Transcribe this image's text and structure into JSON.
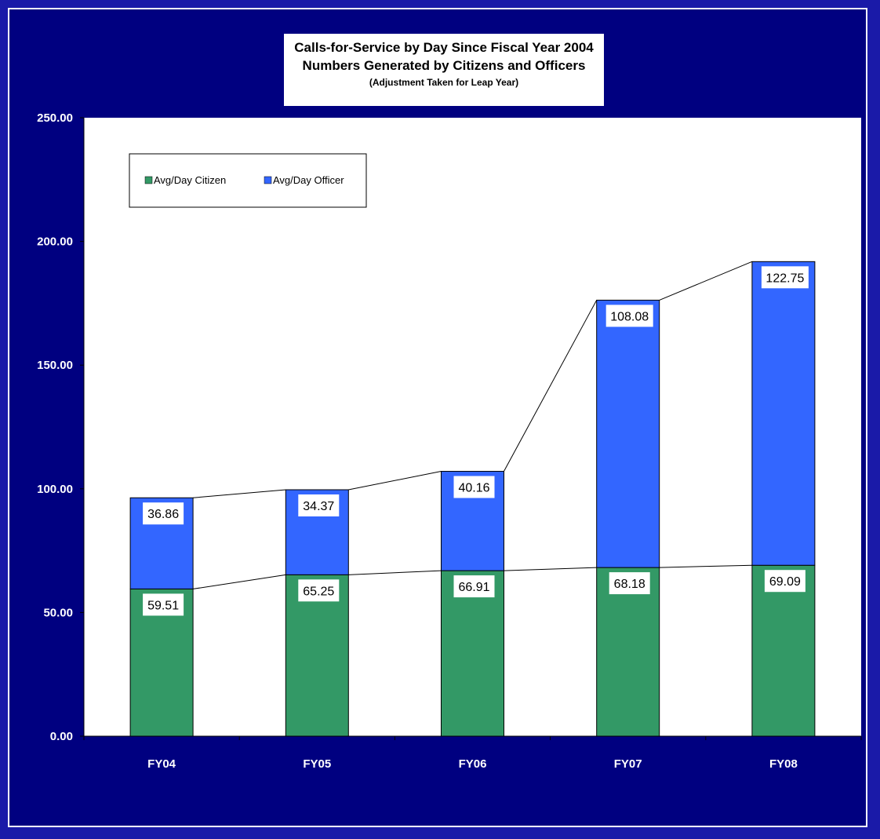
{
  "title": {
    "line1": "Calls-for-Service by Day Since Fiscal Year 2004",
    "line2": "Numbers Generated by Citizens and Officers",
    "line3": "(Adjustment Taken for Leap Year)"
  },
  "colors": {
    "frame_outer": "#1a1aa8",
    "frame_inner": "#000080",
    "citizen": "#339966",
    "officer": "#3366ff",
    "plot_bg": "#ffffff"
  },
  "chart_data": {
    "type": "bar",
    "stacked": true,
    "categories": [
      "FY04",
      "FY05",
      "FY06",
      "FY07",
      "FY08"
    ],
    "series": [
      {
        "name": "Avg/Day Citizen",
        "values": [
          59.51,
          65.25,
          66.91,
          68.18,
          69.09
        ],
        "color": "#339966"
      },
      {
        "name": "Avg/Day Officer",
        "values": [
          36.86,
          34.37,
          40.16,
          108.08,
          122.75
        ],
        "color": "#3366ff"
      }
    ],
    "data_labels": {
      "citizen": [
        "59.51",
        "65.25",
        "66.91",
        "68.18",
        "69.09"
      ],
      "officer": [
        "36.86",
        "34.37",
        "40.16",
        "108.08",
        "122.75"
      ]
    },
    "ylim": [
      0,
      250
    ],
    "yticks": [
      "0.00",
      "50.00",
      "100.00",
      "150.00",
      "200.00",
      "250.00"
    ],
    "ytick_values": [
      0,
      50,
      100,
      150,
      200,
      250
    ],
    "xlabel": "",
    "ylabel": "",
    "series_lines": true,
    "legend_placement": "top-left",
    "grid": false
  }
}
